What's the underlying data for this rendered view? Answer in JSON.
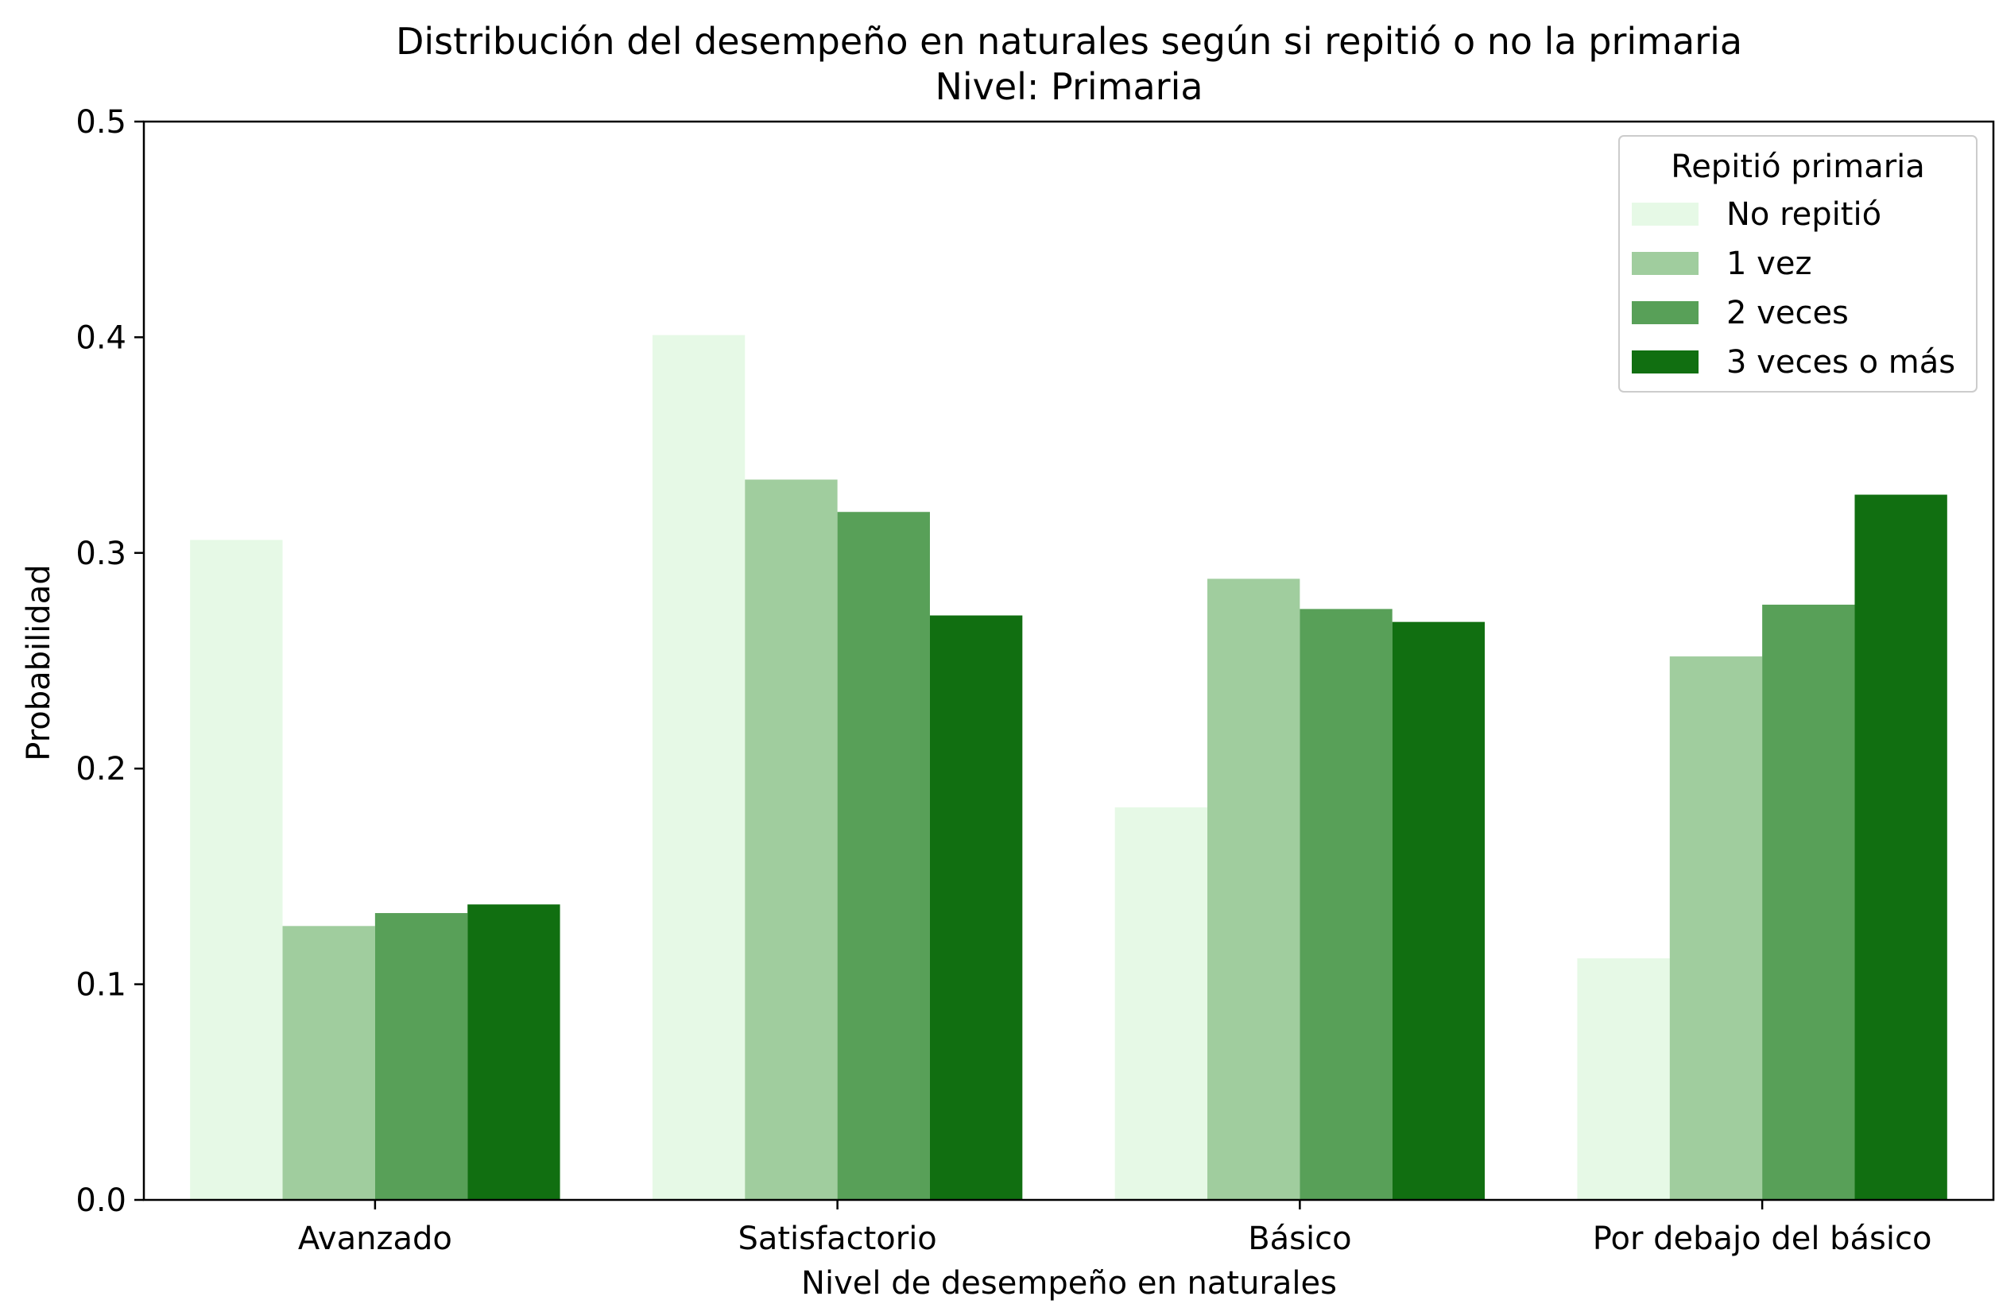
{
  "chart_data": {
    "type": "bar",
    "title": "Distribución del desempeño en naturales según si repitió o no la primaria",
    "subtitle": "Nivel: Primaria",
    "xlabel": "Nivel de desempeño en naturales",
    "ylabel": "Probabilidad",
    "ylim": [
      0,
      0.5
    ],
    "yticks": [
      "0.0",
      "0.1",
      "0.2",
      "0.3",
      "0.4",
      "0.5"
    ],
    "categories": [
      "Avanzado",
      "Satisfactorio",
      "Básico",
      "Por debajo del básico"
    ],
    "legend": {
      "title": "Repitió primaria",
      "placement": "top-right"
    },
    "grid": false,
    "series": [
      {
        "name": "No repitió",
        "color": "#e6f9e6",
        "values": [
          0.306,
          0.401,
          0.182,
          0.112
        ]
      },
      {
        "name": "1 vez",
        "color": "#a0cd9e",
        "values": [
          0.127,
          0.334,
          0.288,
          0.252
        ]
      },
      {
        "name": "2 veces",
        "color": "#58a058",
        "values": [
          0.133,
          0.319,
          0.274,
          0.276
        ]
      },
      {
        "name": "3 veces o más",
        "color": "#116f11",
        "values": [
          0.137,
          0.271,
          0.268,
          0.327
        ]
      }
    ]
  }
}
